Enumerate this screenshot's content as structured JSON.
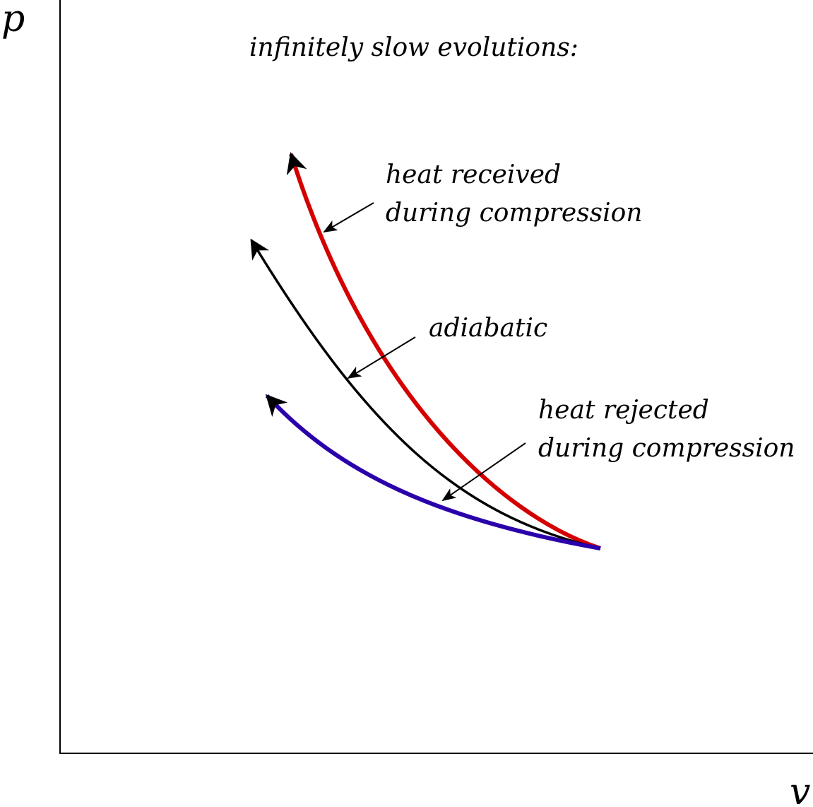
{
  "axes": {
    "y_label": "p",
    "x_label": "v"
  },
  "title": "infinitely slow evolutions:",
  "curves": [
    {
      "key": "heat_received",
      "color": "#d40000",
      "label_lines": [
        "heat received",
        "during compression"
      ]
    },
    {
      "key": "adiabatic",
      "color": "#000000",
      "label_lines": [
        "adiabatic"
      ]
    },
    {
      "key": "heat_rejected",
      "color": "#2a00aa",
      "label_lines": [
        "heat rejected",
        "during compression"
      ]
    }
  ],
  "colors": {
    "axis": "#000000",
    "background": "#ffffff"
  }
}
